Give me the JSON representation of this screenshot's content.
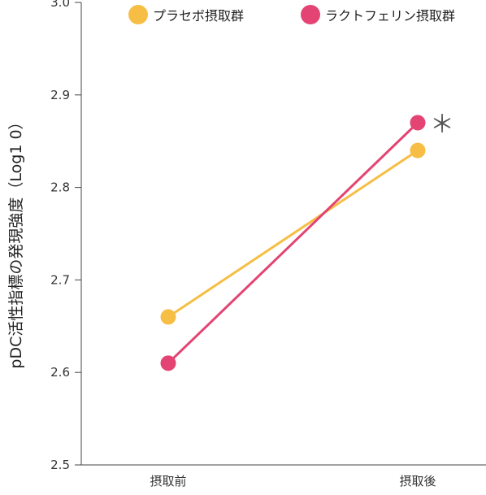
{
  "chart_data": {
    "type": "line",
    "categories": [
      "摂取前",
      "摂取後"
    ],
    "series": [
      {
        "name": "プラセボ摂取群",
        "values": [
          2.66,
          2.84
        ],
        "color": "#F6BE45"
      },
      {
        "name": "ラクトフェリン摂取群",
        "values": [
          2.61,
          2.87
        ],
        "color": "#E34473"
      }
    ],
    "ylabel": "pDC活性指標の発現強度（Log1 0）",
    "ylim": [
      2.5,
      3.0
    ],
    "yticks": [
      "2.5",
      "2.6",
      "2.7",
      "2.8",
      "2.9",
      "3.0"
    ],
    "legend": "top",
    "grid": false,
    "annotation": {
      "text": "＊",
      "series_index": 1,
      "category_index": 1
    }
  }
}
